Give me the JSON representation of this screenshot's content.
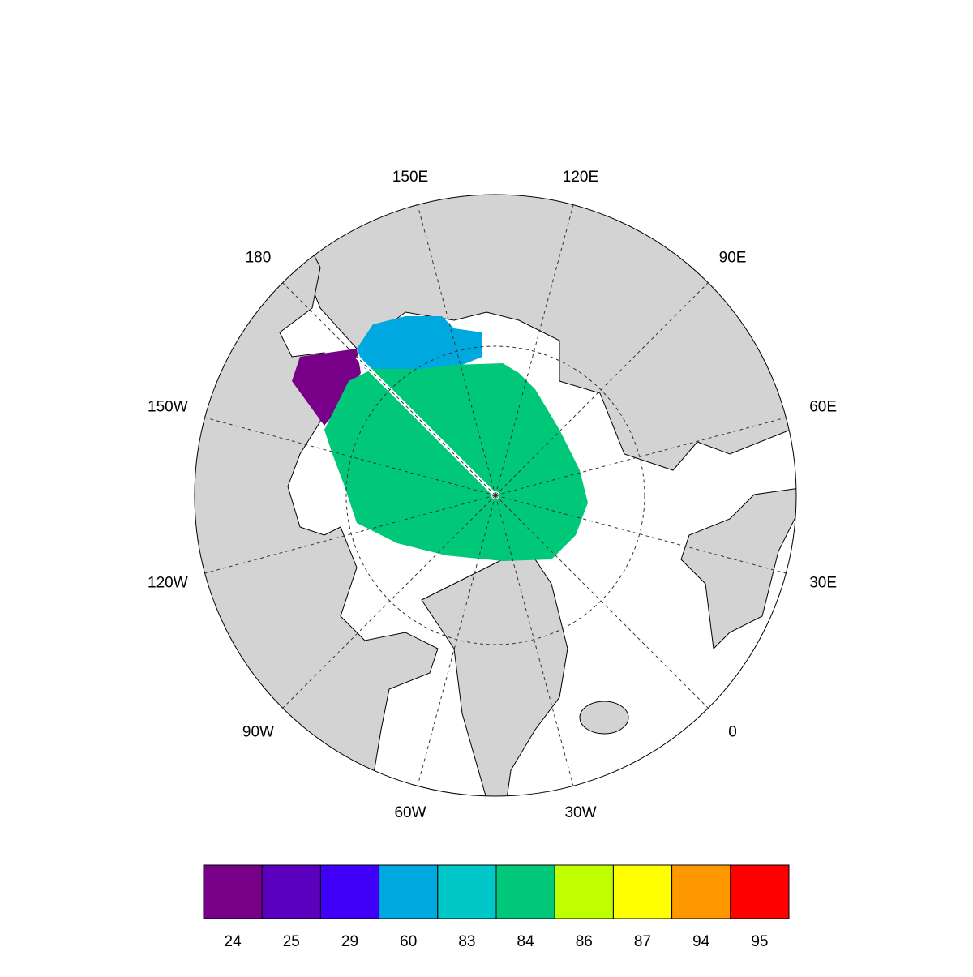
{
  "map": {
    "meridian_labels": [
      "0",
      "30E",
      "60E",
      "90E",
      "120E",
      "150E",
      "180",
      "150W",
      "120W",
      "90W",
      "60W",
      "30W"
    ],
    "colorbar": {
      "labels": [
        24,
        25,
        29,
        60,
        83,
        84,
        86,
        87,
        94,
        95
      ],
      "colors": [
        "#780088",
        "#5a00be",
        "#4000f8",
        "#00a8e0",
        "#00c8c8",
        "#00c878",
        "#c0ff00",
        "#ffff00",
        "#ff9800",
        "#ff0000"
      ]
    }
  }
}
